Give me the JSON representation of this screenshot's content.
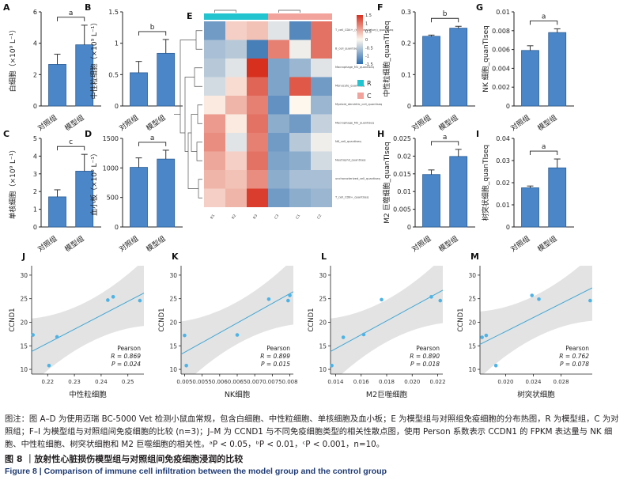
{
  "bar_panels": [
    {
      "id": "A",
      "ylabel": "白细胞（×10⁹ L⁻¹）",
      "ylim": [
        0,
        6
      ],
      "yticks": [
        0,
        2,
        4,
        6
      ],
      "categories": [
        "对照组",
        "模型组"
      ],
      "values": [
        2.65,
        3.9
      ],
      "errors": [
        0.65,
        1.25
      ],
      "sig": "a"
    },
    {
      "id": "B",
      "ylabel": "中性粒细胞（×10⁹ L⁻¹）",
      "ylim": [
        0,
        1.5
      ],
      "yticks": [
        0,
        0.5,
        1.0,
        1.5
      ],
      "categories": [
        "对照组",
        "模型组"
      ],
      "values": [
        0.53,
        0.84
      ],
      "errors": [
        0.18,
        0.22
      ],
      "sig": "b"
    },
    {
      "id": "C",
      "ylabel": "单核细胞（×10⁹ L⁻¹）",
      "ylim": [
        0,
        5
      ],
      "yticks": [
        0,
        1,
        2,
        3,
        4,
        5
      ],
      "categories": [
        "对照组",
        "模型组"
      ],
      "values": [
        1.7,
        3.15
      ],
      "errors": [
        0.4,
        0.95
      ],
      "sig": "c"
    },
    {
      "id": "D",
      "ylabel": "血小板（×10⁹ L⁻¹）",
      "ylim": [
        0,
        1500
      ],
      "yticks": [
        0,
        500,
        1000,
        1500
      ],
      "categories": [
        "对照组",
        "模型组"
      ],
      "values": [
        1010,
        1150
      ],
      "errors": [
        160,
        150
      ],
      "sig": "a"
    },
    {
      "id": "F",
      "ylabel": "中性粒细胞_quanTIseq",
      "ylim": [
        0,
        0.3
      ],
      "yticks": [
        0,
        0.1,
        0.2,
        0.3
      ],
      "categories": [
        "对照组",
        "模型组"
      ],
      "values": [
        0.222,
        0.248
      ],
      "errors": [
        0.004,
        0.006
      ],
      "sig": "b"
    },
    {
      "id": "G",
      "ylabel": "NK 细胞_quanTIseq",
      "ylim": [
        0,
        0.01
      ],
      "yticks": [
        0,
        0.002,
        0.004,
        0.006,
        0.008,
        0.01
      ],
      "categories": [
        "对照组",
        "模型组"
      ],
      "values": [
        0.0059,
        0.0078
      ],
      "errors": [
        0.0005,
        0.0004
      ],
      "sig": "a"
    },
    {
      "id": "H",
      "ylabel": "M2 巨噬细胞_quanTIseq",
      "ylim": [
        0,
        0.025
      ],
      "yticks": [
        0,
        0.005,
        0.01,
        0.015,
        0.02,
        0.025
      ],
      "categories": [
        "对照组",
        "模型组"
      ],
      "values": [
        0.0148,
        0.0199
      ],
      "errors": [
        0.0013,
        0.002
      ],
      "sig": "a"
    },
    {
      "id": "I",
      "ylabel": "树突状细胞_quanTIseq",
      "ylim": [
        0,
        0.04
      ],
      "yticks": [
        0,
        0.01,
        0.02,
        0.03,
        0.04
      ],
      "categories": [
        "对照组",
        "模型组"
      ],
      "values": [
        0.0177,
        0.0267
      ],
      "errors": [
        0.0008,
        0.004
      ],
      "sig": "a"
    }
  ],
  "heatmap": {
    "id": "E",
    "columns": [
      "R1",
      "R2",
      "R3",
      "C3",
      "C1",
      "C2"
    ],
    "group_labels": [
      "R",
      "C"
    ],
    "group_colors": [
      "#22c4cf",
      "#f2a39b"
    ],
    "rows": [
      "T_cell_CD4+_(non-regulatory)_quantiseq",
      "B_cell_quantiseq",
      "Macrophage_M1_quantiseq",
      "Monocyte_quantiseq",
      "Myeloid_dendritic_cell_quantiseq",
      "Macrophage_M2_quantiseq",
      "NK_cell_quantiseq",
      "Neutrophil_quantiseq",
      "uncharacterized_cell_quantiseq",
      "T_cell_CD8+_quantiseq"
    ],
    "values": [
      [
        -1.0,
        0.3,
        0.4,
        -0.2,
        -1.2,
        1.0
      ],
      [
        -0.6,
        -0.5,
        -1.3,
        0.9,
        -0.1,
        1.0
      ],
      [
        -0.5,
        -0.2,
        1.5,
        -0.9,
        -0.7,
        -0.2
      ],
      [
        -0.3,
        0.2,
        1.1,
        -0.9,
        1.2,
        -1.0
      ],
      [
        0.1,
        0.5,
        0.9,
        -1.1,
        0.0,
        -0.7
      ],
      [
        0.7,
        0.1,
        1.0,
        -0.8,
        -1.0,
        -0.4
      ],
      [
        0.8,
        -0.2,
        0.9,
        -1.0,
        -0.5,
        -0.1
      ],
      [
        0.6,
        0.3,
        1.0,
        -0.9,
        -0.8,
        -0.3
      ],
      [
        0.5,
        0.4,
        0.8,
        -0.8,
        -0.6,
        -0.6
      ],
      [
        0.3,
        0.5,
        1.4,
        -1.0,
        -0.8,
        -0.7
      ]
    ],
    "scale_ticks": [
      "1.5",
      "1",
      "0.5",
      "0",
      "-0.5",
      "-1",
      "-1.5"
    ],
    "colors": {
      "high": "#d7301f",
      "mid": "#fdf7ee",
      "low": "#2b6cb0"
    }
  },
  "scatter_panels": [
    {
      "id": "J",
      "xlabel": "中性粒细胞",
      "ylabel": "CCND1",
      "xlim": [
        0.214,
        0.256
      ],
      "ylim": [
        9,
        32
      ],
      "xticks": [
        0.22,
        0.23,
        0.24,
        0.25
      ],
      "xticklabels": [
        "0.22",
        "0.23",
        "0.24",
        "0.25"
      ],
      "yticks": [
        10,
        15,
        20,
        25,
        30
      ],
      "points": [
        [
          0.2145,
          17.3
        ],
        [
          0.2205,
          10.8
        ],
        [
          0.2235,
          16.9
        ],
        [
          0.2425,
          24.7
        ],
        [
          0.2445,
          25.4
        ],
        [
          0.2545,
          24.6
        ]
      ],
      "line": [
        [
          0.214,
          13.8
        ],
        [
          0.256,
          26.2
        ]
      ],
      "stats": [
        "Pearson",
        "R = 0.869",
        "P = 0.024"
      ]
    },
    {
      "id": "K",
      "xlabel": "NK细胞",
      "ylabel": "CCND1",
      "xlim": [
        0.0049,
        0.0081
      ],
      "ylim": [
        9,
        32
      ],
      "xticks": [
        0.005,
        0.0055,
        0.006,
        0.0065,
        0.007,
        0.0075,
        0.008
      ],
      "xticklabels": [
        "0.005",
        "0.0055",
        "0.006",
        "0.0065",
        "0.007",
        "0.0075",
        "0.008"
      ],
      "yticks": [
        10,
        15,
        20,
        25,
        30
      ],
      "points": [
        [
          0.005,
          17.2
        ],
        [
          0.00505,
          10.8
        ],
        [
          0.0065,
          17.3
        ],
        [
          0.0074,
          24.9
        ],
        [
          0.00795,
          24.6
        ],
        [
          0.008,
          25.7
        ]
      ],
      "line": [
        [
          0.0049,
          13.2
        ],
        [
          0.0081,
          26.5
        ]
      ],
      "stats": [
        "Pearson",
        "R = 0.899",
        "P = 0.015"
      ]
    },
    {
      "id": "L",
      "xlabel": "M2巨噬细胞",
      "ylabel": "CCND1",
      "xlim": [
        0.0136,
        0.0224
      ],
      "ylim": [
        9,
        32
      ],
      "xticks": [
        0.014,
        0.016,
        0.018,
        0.02,
        0.022
      ],
      "xticklabels": [
        "0.014",
        "0.016",
        "0.018",
        "0.020",
        "0.022"
      ],
      "yticks": [
        10,
        15,
        20,
        25,
        30
      ],
      "points": [
        [
          0.0137,
          10.8
        ],
        [
          0.0146,
          16.8
        ],
        [
          0.0162,
          17.4
        ],
        [
          0.0176,
          24.8
        ],
        [
          0.0215,
          25.4
        ],
        [
          0.0222,
          24.6
        ]
      ],
      "line": [
        [
          0.0136,
          13.8
        ],
        [
          0.0224,
          26.8
        ]
      ],
      "stats": [
        "Pearson",
        "R = 0.890",
        "P = 0.018"
      ]
    },
    {
      "id": "M",
      "xlabel": "树突状细胞",
      "ylabel": "CCND1",
      "xlim": [
        0.0163,
        0.0325
      ],
      "ylim": [
        9,
        32
      ],
      "xticks": [
        0.02,
        0.024,
        0.028
      ],
      "xticklabels": [
        "0.020",
        "0.024",
        "0.028"
      ],
      "yticks": [
        10,
        15,
        20,
        25,
        30
      ],
      "points": [
        [
          0.0166,
          16.8
        ],
        [
          0.0172,
          17.2
        ],
        [
          0.0186,
          10.8
        ],
        [
          0.0238,
          25.7
        ],
        [
          0.0248,
          24.9
        ],
        [
          0.0322,
          24.6
        ]
      ],
      "line": [
        [
          0.0163,
          15.3
        ],
        [
          0.0325,
          27.3
        ]
      ],
      "stats": [
        "Pearson",
        "R = 0.762",
        "P = 0.078"
      ]
    }
  ],
  "caption": {
    "line1": "图注：图 A–D 为使用迈瑞 BC-5000 Vet 检测小鼠血常规，包含白细胞、中性粒细胞、单核细胞及血小板；E 为模型组与对照组免疫细胞的分布热图，R 为模型组，C 为对照组；F–I 为模型组与对照组间免疫细胞的比较 (n=3)；J–M 为 CCND1 与不同免疫细胞类型的相关性散点图，使用 Person 系数表示 CCDN1 的 FPKM 表达量与 NK 细胞、中性粒细胞、树突状细胞和 M2 巨噬细胞的相关性。ᵃP < 0.05，ᵇP < 0.01，ᶜP < 0.001，n=10。",
    "title_cn": "图 8 ｜放射性心脏损伤模型组与对照组间免疫细胞浸润的比较",
    "title_en": "Figure 8  |  Comparison of immune cell infiltration between the model group and the control group"
  }
}
